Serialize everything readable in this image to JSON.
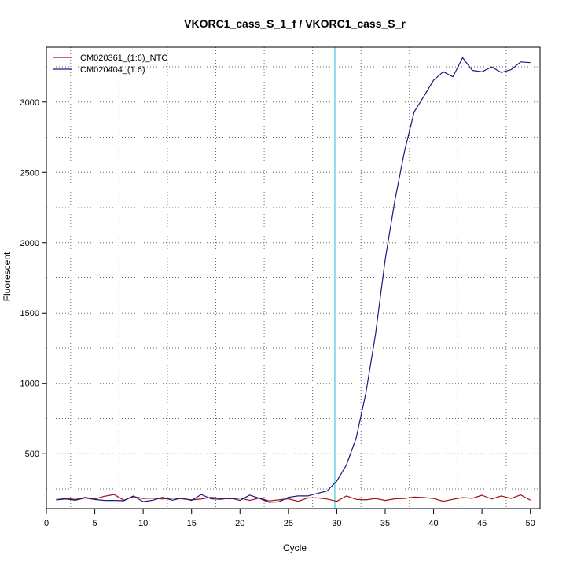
{
  "chart_data": {
    "type": "line",
    "title": "VKORC1_cass_S_1_f / VKORC1_cass_S_r",
    "xlabel": "Cycle",
    "ylabel": "Fluorescent",
    "xlim": [
      0,
      51
    ],
    "ylim": [
      110,
      3390
    ],
    "x_ticks": [
      0,
      5,
      10,
      15,
      20,
      25,
      30,
      35,
      40,
      45,
      50
    ],
    "y_ticks": [
      500,
      1000,
      1500,
      2000,
      2500,
      3000
    ],
    "grid": true,
    "legend_position": "top-left",
    "threshold_cycle": 29.8,
    "threshold_color": "#40c8e0",
    "x": [
      1,
      2,
      3,
      4,
      5,
      6,
      7,
      8,
      9,
      10,
      11,
      12,
      13,
      14,
      15,
      16,
      17,
      18,
      19,
      20,
      21,
      22,
      23,
      24,
      25,
      26,
      27,
      28,
      29,
      30,
      31,
      32,
      33,
      34,
      35,
      36,
      37,
      38,
      39,
      40,
      41,
      42,
      43,
      44,
      45,
      46,
      47,
      48,
      49,
      50
    ],
    "series": [
      {
        "name": "CM020361_(1:6)_NTC",
        "color": "#a01010",
        "values": [
          185,
          182,
          175,
          190,
          178,
          198,
          210,
          170,
          195,
          182,
          185,
          178,
          185,
          180,
          172,
          178,
          190,
          182,
          180,
          185,
          168,
          185,
          165,
          172,
          180,
          162,
          186,
          186,
          178,
          162,
          200,
          176,
          172,
          182,
          168,
          180,
          182,
          192,
          188,
          182,
          162,
          176,
          188,
          183,
          205,
          178,
          200,
          182,
          207,
          170
        ]
      },
      {
        "name": "CM020404_(1:6)",
        "color": "#1a1a80",
        "values": [
          172,
          178,
          170,
          186,
          175,
          168,
          168,
          166,
          200,
          160,
          170,
          190,
          170,
          185,
          168,
          210,
          180,
          176,
          186,
          168,
          206,
          183,
          155,
          158,
          190,
          200,
          200,
          218,
          236,
          305,
          420,
          610,
          930,
          1350,
          1880,
          2300,
          2650,
          2930,
          3040,
          3155,
          3215,
          3180,
          3315,
          3225,
          3215,
          3250,
          3210,
          3230,
          3285,
          3280
        ]
      }
    ]
  }
}
